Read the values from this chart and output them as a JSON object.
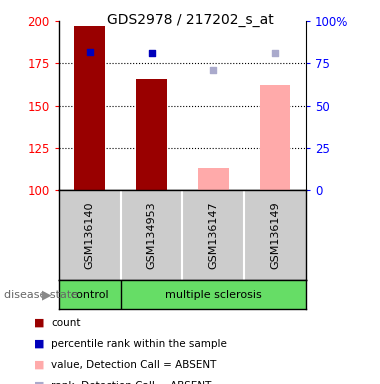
{
  "title": "GDS2978 / 217202_s_at",
  "samples": [
    "GSM136140",
    "GSM134953",
    "GSM136147",
    "GSM136149"
  ],
  "bar_values": [
    197,
    166,
    null,
    null
  ],
  "bar_absent_values": [
    null,
    null,
    113,
    162
  ],
  "percentile_present": [
    182,
    181,
    null,
    null
  ],
  "percentile_absent": [
    null,
    null,
    171,
    181
  ],
  "ylim": [
    100,
    200
  ],
  "yticks_left": [
    100,
    125,
    150,
    175,
    200
  ],
  "yticks_right_labels": [
    "0",
    "25",
    "50",
    "75",
    "100%"
  ],
  "yticks_right_vals": [
    100,
    125,
    150,
    175,
    200
  ],
  "bar_color_present": "#990000",
  "bar_color_absent": "#ffaaaa",
  "dot_color_present": "#0000bb",
  "dot_color_absent": "#aaaacc",
  "axis_bg": "#cccccc",
  "plot_bg": "#ffffff",
  "bar_width": 0.5,
  "legend_labels": [
    "count",
    "percentile rank within the sample",
    "value, Detection Call = ABSENT",
    "rank, Detection Call = ABSENT"
  ],
  "legend_colors": [
    "#990000",
    "#0000bb",
    "#ffaaaa",
    "#aaaacc"
  ]
}
